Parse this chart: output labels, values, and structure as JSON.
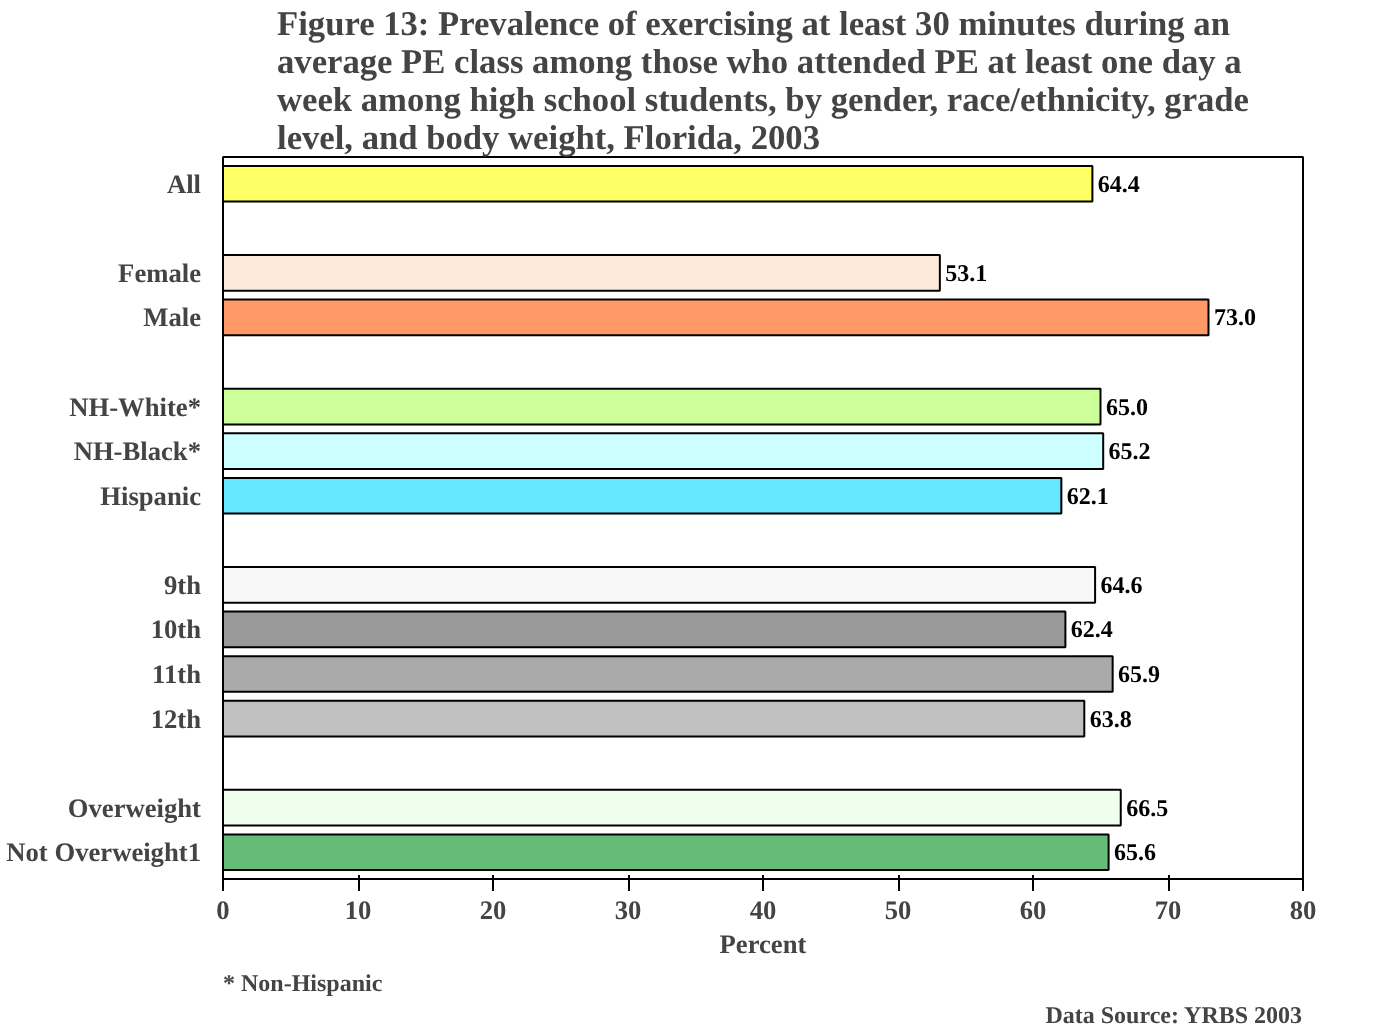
{
  "chart_data": {
    "type": "bar",
    "orientation": "horizontal",
    "title": "Figure 13: Prevalence of exercising at least 30 minutes during an average PE class among those who attended PE at least one day a week among high school students, by gender, race/ethnicity, grade level, and body weight, Florida, 2003",
    "categories": [
      "All",
      null,
      "Female",
      "Male",
      null,
      "NH-White*",
      "NH-Black*",
      "Hispanic",
      null,
      "9th",
      "10th",
      "11th",
      "12th",
      null,
      "Overweight",
      "Not Overweight1"
    ],
    "values": [
      64.4,
      null,
      53.1,
      73.0,
      null,
      65.0,
      65.2,
      62.1,
      null,
      64.6,
      62.4,
      65.9,
      63.8,
      null,
      66.5,
      65.6
    ],
    "value_labels": [
      "64.4",
      null,
      "53.1",
      "73.0",
      null,
      "65.0",
      "65.2",
      "62.1",
      null,
      "64.6",
      "62.4",
      "65.9",
      "63.8",
      null,
      "66.5",
      "65.6"
    ],
    "colors": [
      "#ffff66",
      null,
      "#fdeada",
      "#ff9966",
      null,
      "#ccff99",
      "#ccffff",
      "#66e6ff",
      null,
      "#f8f8f8",
      "#999999",
      "#aaaaaa",
      "#c0c0c0",
      null,
      "#eeffee",
      "#66bb77"
    ],
    "xlabel": "Percent",
    "xlim": [
      0,
      80
    ],
    "xticks": [
      0,
      10,
      20,
      30,
      40,
      50,
      60,
      70,
      80
    ],
    "grid": false,
    "annotations": [
      "* Non-Hispanic",
      "Data Source: YRBS 2003"
    ]
  }
}
